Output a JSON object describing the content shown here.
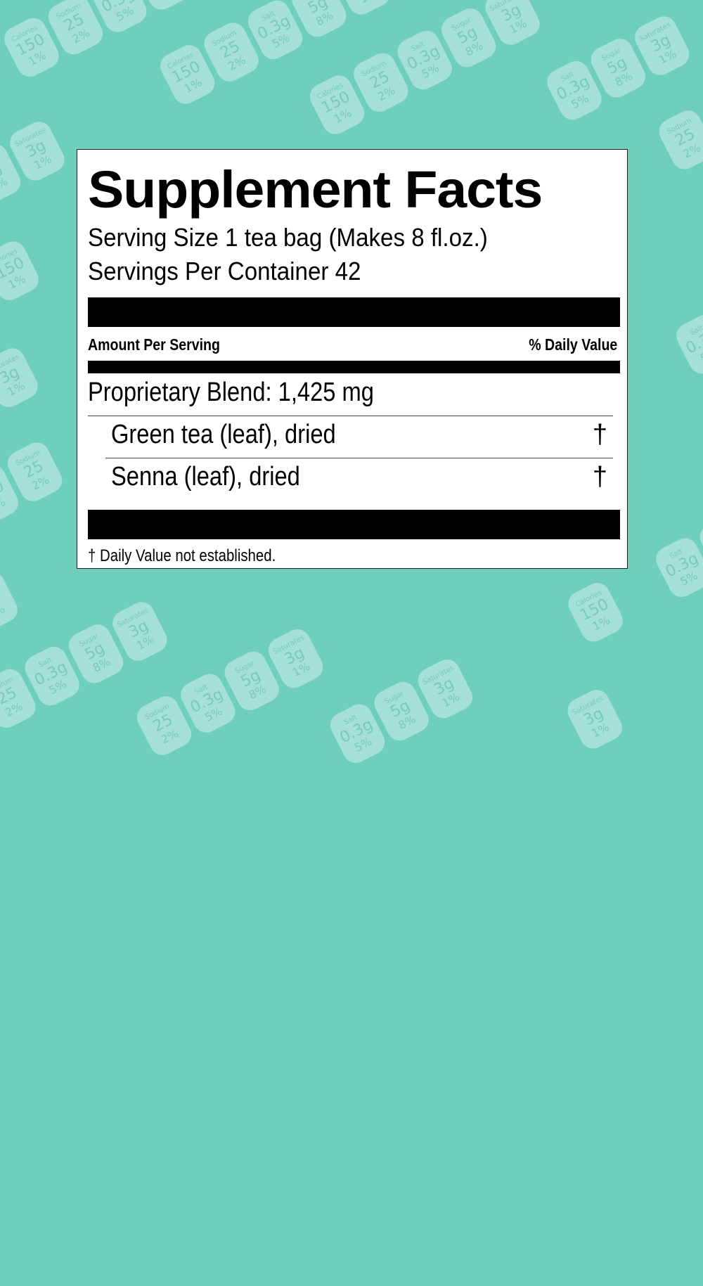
{
  "background": {
    "color": "#6fcfbd",
    "pills": [
      {
        "name": "Calories",
        "value": "150",
        "percent": "1%"
      },
      {
        "name": "Sodium",
        "value": "25",
        "percent": "2%"
      },
      {
        "name": "Salt",
        "value": "0.3g",
        "percent": "5%"
      },
      {
        "name": "Sugar",
        "value": "5g",
        "percent": "8%"
      },
      {
        "name": "Saturates",
        "value": "3g",
        "percent": "1%"
      }
    ]
  },
  "label": {
    "title": "Supplement Facts",
    "serving_size": "Serving Size 1 tea bag (Makes 8 fl.oz.)",
    "servings_per_container": "Servings Per Container 42",
    "amount_header": "Amount Per Serving",
    "dv_header": "% Daily Value",
    "blend_name": "Proprietary Blend:",
    "blend_amount": "1,425 mg",
    "ingredients": [
      {
        "name": "Green tea (leaf), dried",
        "dv": "†"
      },
      {
        "name": "Senna (leaf), dried",
        "dv": "†"
      }
    ],
    "footnote": "† Daily Value not established."
  }
}
